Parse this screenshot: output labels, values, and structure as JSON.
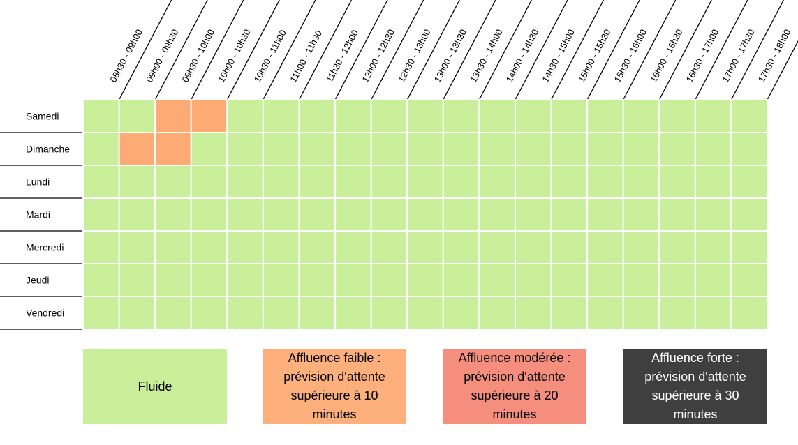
{
  "chart_data": {
    "type": "heatmap",
    "title": "",
    "time_slots": [
      "08h30 - 09h00",
      "09h00 - 09h30",
      "09h30 - 10h00",
      "10h00 - 10h30",
      "10h30 - 11h00",
      "11h00 - 11h30",
      "11h30 - 12h00",
      "12h00 - 12h30",
      "12h30 - 13h00",
      "13h00 - 13h30",
      "13h30 - 14h00",
      "14h00 - 14h30",
      "14h30 - 15h00",
      "15h00 - 15h30",
      "15h30 - 16h00",
      "16h00 - 16h30",
      "16h30 - 17h00",
      "17h00 - 17h30",
      "17h30 - 18h00"
    ],
    "days": [
      "Samedi",
      "Dimanche",
      "Lundi",
      "Mardi",
      "Mercredi",
      "Jeudi",
      "Vendredi"
    ],
    "levels": [
      [
        0,
        0,
        1,
        1,
        0,
        0,
        0,
        0,
        0,
        0,
        0,
        0,
        0,
        0,
        0,
        0,
        0,
        0,
        0
      ],
      [
        0,
        1,
        1,
        0,
        0,
        0,
        0,
        0,
        0,
        0,
        0,
        0,
        0,
        0,
        0,
        0,
        0,
        0,
        0
      ],
      [
        0,
        0,
        0,
        0,
        0,
        0,
        0,
        0,
        0,
        0,
        0,
        0,
        0,
        0,
        0,
        0,
        0,
        0,
        0
      ],
      [
        0,
        0,
        0,
        0,
        0,
        0,
        0,
        0,
        0,
        0,
        0,
        0,
        0,
        0,
        0,
        0,
        0,
        0,
        0
      ],
      [
        0,
        0,
        0,
        0,
        0,
        0,
        0,
        0,
        0,
        0,
        0,
        0,
        0,
        0,
        0,
        0,
        0,
        0,
        0
      ],
      [
        0,
        0,
        0,
        0,
        0,
        0,
        0,
        0,
        0,
        0,
        0,
        0,
        0,
        0,
        0,
        0,
        0,
        0,
        0
      ],
      [
        0,
        0,
        0,
        0,
        0,
        0,
        0,
        0,
        0,
        0,
        0,
        0,
        0,
        0,
        0,
        0,
        0,
        0,
        0
      ]
    ],
    "legend": [
      {
        "level": 0,
        "label": "Fluide"
      },
      {
        "level": 1,
        "label": "Affluence faible : prévision d'attente supérieure à 10 minutes"
      },
      {
        "level": 2,
        "label": "Affluence modérée : prévision d'attente supérieure à 20 minutes"
      },
      {
        "level": 3,
        "label": "Affluence forte : prévision d'attente supérieure à 30 minutes"
      }
    ]
  },
  "colors": {
    "fluid": "#c9ef9a",
    "low": "#fdb07b",
    "moderate": "#f58e7d",
    "high": "#3f3f3f",
    "low_cell": "#fcab74"
  }
}
